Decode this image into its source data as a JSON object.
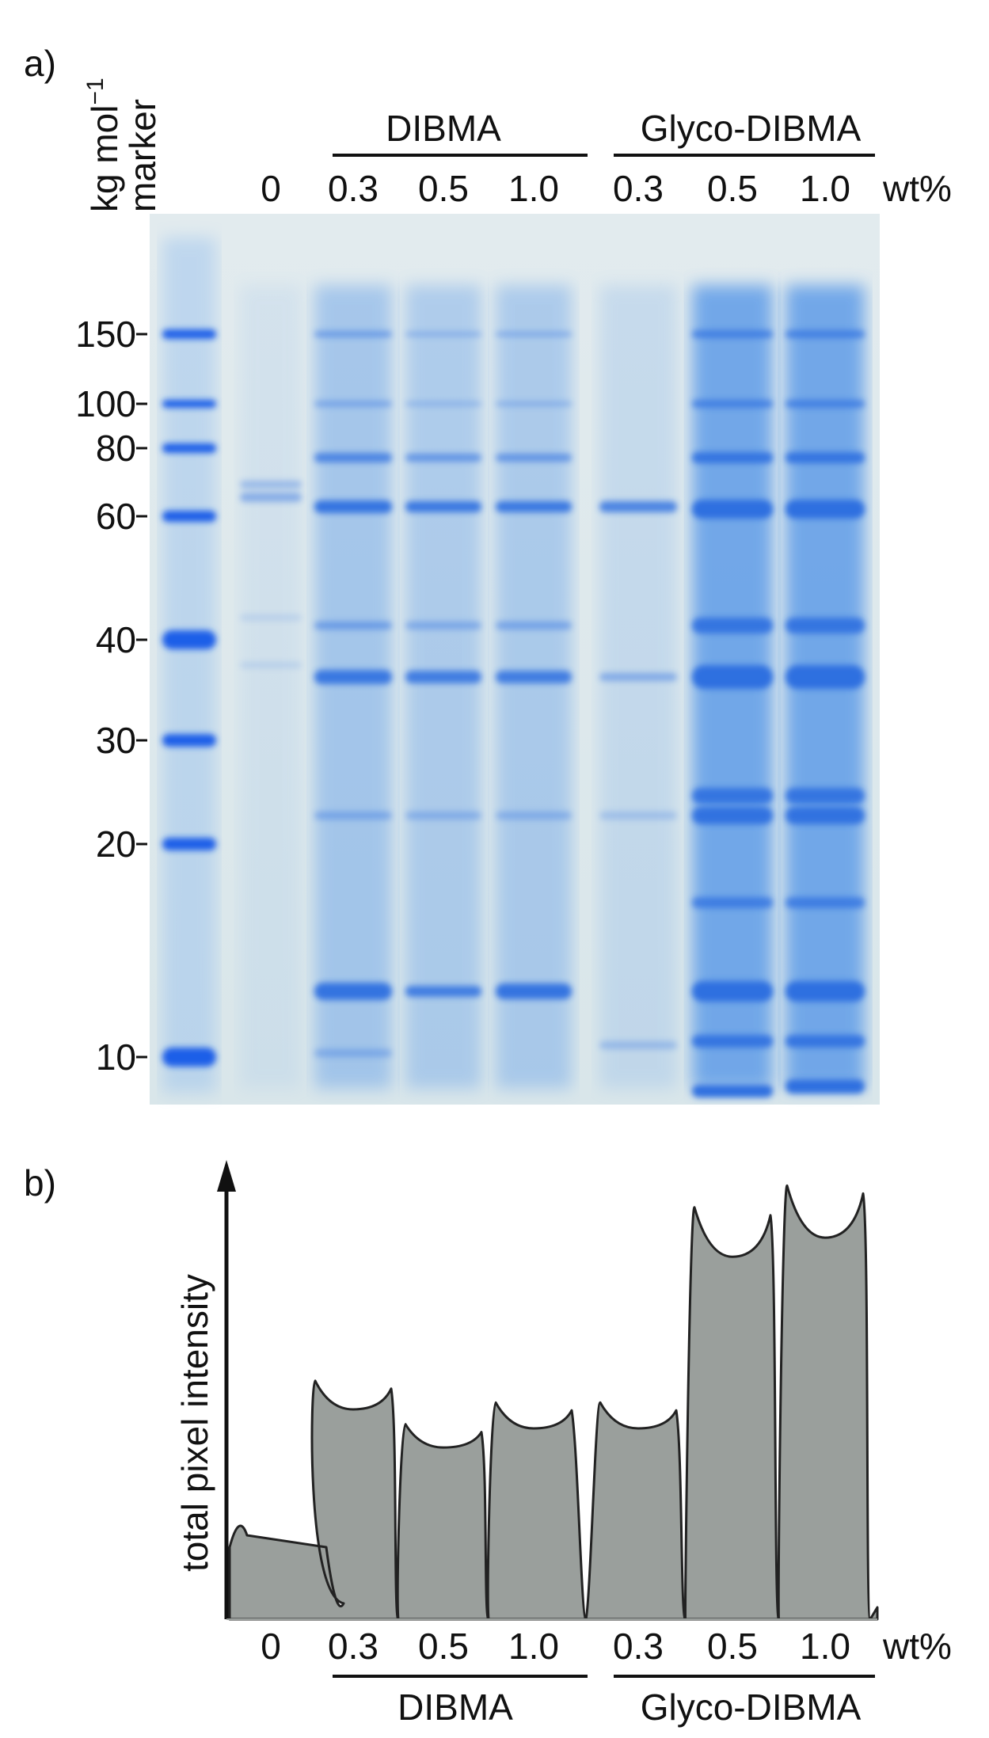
{
  "panel_a": {
    "label": "a)",
    "y_axis_label": "kg mol",
    "y_axis_label_exp": "−1",
    "marker_label": "marker",
    "group_dibma": "DIBMA",
    "group_glyco": "Glyco-DIBMA",
    "lane_labels": [
      "0",
      "0.3",
      "0.5",
      "1.0",
      "0.3",
      "0.5",
      "1.0"
    ],
    "unit": "wt%",
    "mw_ticks": [
      "150",
      "100",
      "80",
      "60",
      "40",
      "30",
      "20",
      "10"
    ],
    "colors": {
      "gel_background": "#dfe9ec",
      "band_blue": "#2f6fe0",
      "marker_blue": "#1f5fe8"
    }
  },
  "panel_b": {
    "label": "b)",
    "y_axis_label": "total pixel intensity",
    "lane_labels": [
      "0",
      "0.3",
      "0.5",
      "1.0",
      "0.3",
      "0.5",
      "1.0"
    ],
    "unit": "wt%",
    "group_dibma": "DIBMA",
    "group_glyco": "Glyco-DIBMA",
    "colors": {
      "fill": "#9a9f9c",
      "line": "#222222"
    }
  },
  "chart_data": {
    "type": "area",
    "ylabel": "total pixel intensity",
    "categories": [
      "0",
      "0.3",
      "0.5",
      "1.0",
      "0.3",
      "0.5",
      "1.0"
    ],
    "groups": [
      "",
      "DIBMA",
      "DIBMA",
      "DIBMA",
      "Glyco-DIBMA",
      "Glyco-DIBMA",
      "Glyco-DIBMA"
    ],
    "values": [
      0.23,
      0.55,
      0.45,
      0.5,
      0.5,
      0.95,
      1.0
    ],
    "ylim": [
      0,
      1.05
    ],
    "grid": false
  }
}
